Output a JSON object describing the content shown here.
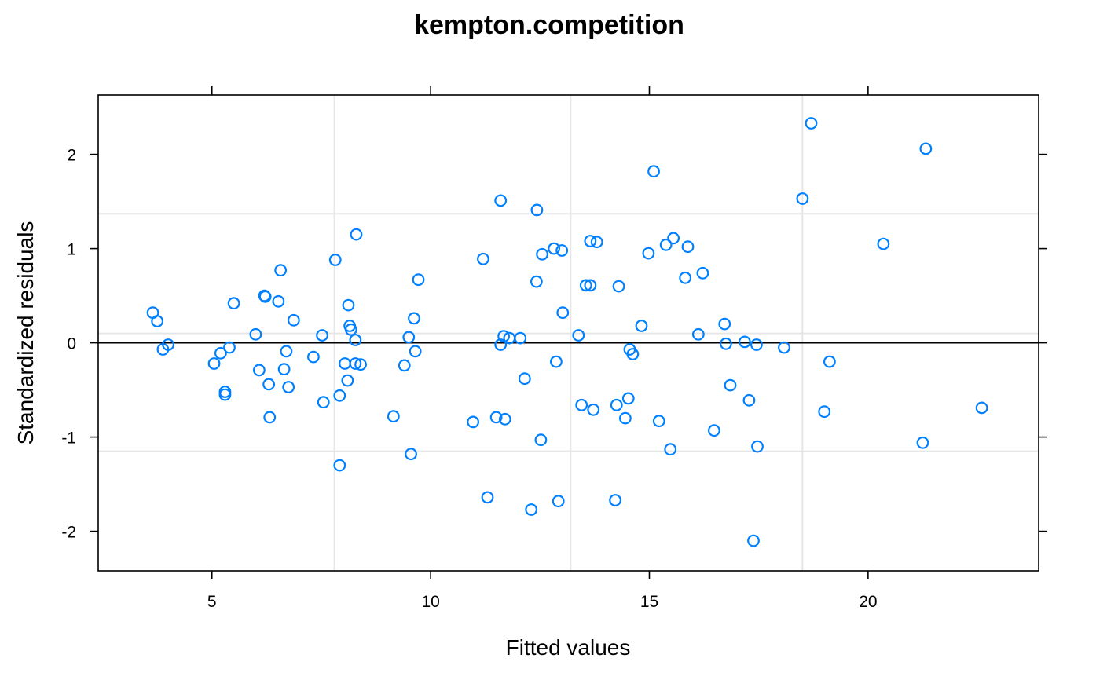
{
  "chart_data": {
    "type": "scatter",
    "title": "kempton.competition",
    "xlabel": "Fitted values",
    "ylabel": "Standardized residuals",
    "xlim": [
      2.4,
      23.9
    ],
    "ylim": [
      -2.42,
      2.63
    ],
    "xticks": [
      5,
      10,
      15,
      20
    ],
    "yticks": [
      -2,
      -1,
      0,
      1,
      2
    ],
    "vgrid": [
      7.8,
      13.2,
      18.5
    ],
    "hgrid": [
      -1.15,
      0.1,
      1.37
    ],
    "reference_line_y": 0,
    "point_color": "#0080ff",
    "points": [
      [
        3.65,
        0.32
      ],
      [
        3.75,
        0.23
      ],
      [
        3.88,
        -0.07
      ],
      [
        4.0,
        -0.02
      ],
      [
        5.05,
        -0.22
      ],
      [
        5.2,
        -0.11
      ],
      [
        5.3,
        -0.52
      ],
      [
        5.3,
        -0.55
      ],
      [
        5.4,
        -0.05
      ],
      [
        5.5,
        0.42
      ],
      [
        6.0,
        0.09
      ],
      [
        6.08,
        -0.29
      ],
      [
        6.2,
        0.5
      ],
      [
        6.22,
        0.49
      ],
      [
        6.3,
        -0.44
      ],
      [
        6.32,
        -0.79
      ],
      [
        6.52,
        0.44
      ],
      [
        6.57,
        0.77
      ],
      [
        6.65,
        -0.28
      ],
      [
        6.7,
        -0.09
      ],
      [
        6.75,
        -0.47
      ],
      [
        6.87,
        0.24
      ],
      [
        7.32,
        -0.15
      ],
      [
        7.52,
        0.08
      ],
      [
        7.55,
        -0.63
      ],
      [
        7.82,
        0.88
      ],
      [
        7.92,
        -1.3
      ],
      [
        7.92,
        -0.56
      ],
      [
        8.04,
        -0.22
      ],
      [
        8.1,
        -0.4
      ],
      [
        8.12,
        0.4
      ],
      [
        8.15,
        0.18
      ],
      [
        8.18,
        0.14
      ],
      [
        8.28,
        0.03
      ],
      [
        8.28,
        -0.22
      ],
      [
        8.3,
        1.15
      ],
      [
        8.4,
        -0.23
      ],
      [
        9.15,
        -0.78
      ],
      [
        9.4,
        -0.24
      ],
      [
        9.5,
        0.06
      ],
      [
        9.55,
        -1.18
      ],
      [
        9.62,
        0.26
      ],
      [
        9.65,
        -0.09
      ],
      [
        9.72,
        0.67
      ],
      [
        10.97,
        -0.84
      ],
      [
        11.2,
        0.89
      ],
      [
        11.3,
        -1.64
      ],
      [
        11.5,
        -0.79
      ],
      [
        11.6,
        -0.02
      ],
      [
        11.6,
        1.51
      ],
      [
        11.67,
        0.07
      ],
      [
        11.7,
        -0.81
      ],
      [
        11.8,
        0.05
      ],
      [
        12.05,
        0.05
      ],
      [
        12.15,
        -0.38
      ],
      [
        12.3,
        -1.77
      ],
      [
        12.42,
        0.65
      ],
      [
        12.43,
        1.41
      ],
      [
        12.52,
        -1.03
      ],
      [
        12.55,
        0.94
      ],
      [
        12.82,
        1.0
      ],
      [
        12.87,
        -0.2
      ],
      [
        12.92,
        -1.68
      ],
      [
        13.0,
        0.98
      ],
      [
        13.02,
        0.32
      ],
      [
        13.38,
        0.08
      ],
      [
        13.45,
        -0.66
      ],
      [
        13.55,
        0.61
      ],
      [
        13.65,
        0.61
      ],
      [
        13.65,
        1.08
      ],
      [
        13.72,
        -0.71
      ],
      [
        13.8,
        1.07
      ],
      [
        14.22,
        -1.67
      ],
      [
        14.25,
        -0.66
      ],
      [
        14.3,
        0.6
      ],
      [
        14.45,
        -0.8
      ],
      [
        14.52,
        -0.59
      ],
      [
        14.55,
        -0.07
      ],
      [
        14.62,
        -0.12
      ],
      [
        14.82,
        0.18
      ],
      [
        14.98,
        0.95
      ],
      [
        15.1,
        1.82
      ],
      [
        15.22,
        -0.83
      ],
      [
        15.38,
        1.04
      ],
      [
        15.48,
        -1.13
      ],
      [
        15.55,
        1.11
      ],
      [
        15.82,
        0.69
      ],
      [
        15.88,
        1.02
      ],
      [
        16.12,
        0.09
      ],
      [
        16.22,
        0.74
      ],
      [
        16.48,
        -0.93
      ],
      [
        16.72,
        0.2
      ],
      [
        16.75,
        -0.01
      ],
      [
        16.85,
        -0.45
      ],
      [
        17.18,
        0.01
      ],
      [
        17.28,
        -0.61
      ],
      [
        17.38,
        -2.1
      ],
      [
        17.45,
        -0.02
      ],
      [
        17.47,
        -1.1
      ],
      [
        18.08,
        -0.05
      ],
      [
        18.5,
        1.53
      ],
      [
        18.7,
        2.33
      ],
      [
        19.0,
        -0.73
      ],
      [
        19.12,
        -0.2
      ],
      [
        20.35,
        1.05
      ],
      [
        21.25,
        -1.06
      ],
      [
        21.32,
        2.06
      ],
      [
        22.6,
        -0.69
      ]
    ]
  }
}
